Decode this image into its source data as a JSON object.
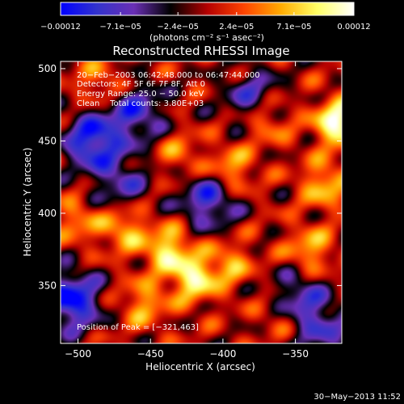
{
  "chart_data": {
    "type": "heatmap",
    "title": "Reconstructed RHESSI Image",
    "xlabel": "Heliocentric X (arcsec)",
    "ylabel": "Heliocentric Y (arcsec)",
    "xlim": [
      -512,
      -318
    ],
    "ylim": [
      310,
      505
    ],
    "x_ticks": [
      -500,
      -450,
      -400,
      -350
    ],
    "x_tick_labels": [
      "−500",
      "−450",
      "−400",
      "−350"
    ],
    "y_ticks": [
      350,
      400,
      450,
      500
    ],
    "y_tick_labels": [
      "350",
      "400",
      "450",
      "500"
    ],
    "colorbar": {
      "range": [
        -0.00012,
        0.00012
      ],
      "tick_values": [
        -0.00012,
        -7.1e-05,
        -2.4e-05,
        2.4e-05,
        7.1e-05,
        0.00012
      ],
      "tick_labels": [
        "−0.00012",
        "−7.1e−05",
        "−2.4e−05",
        "2.4e−05",
        "7.1e−05",
        "0.00012"
      ],
      "units_label": "(photons cm⁻² s⁻¹ asec⁻²)"
    },
    "annotations": [
      "20−Feb−2003 06:42:48.000 to 06:47:44.000",
      "Detectors: 4F 5F 6F 7F 8F, Att 0",
      "Energy Range: 25.0 − 50.0 keV",
      "Clean    Total counts: 3.80E+03"
    ],
    "peak_label": "Position of Peak = [−321,463]",
    "peak_position": [
      -321,
      463
    ],
    "colormap": [
      "#0000ff",
      "#3333cc",
      "#6a2fb5",
      "#000000",
      "#b40000",
      "#ff4400",
      "#ffaa00",
      "#ffff66",
      "#ffffff"
    ],
    "features": [
      {
        "type": "peak",
        "x": -321,
        "y": 463,
        "value": 0.00012
      },
      {
        "type": "peak",
        "x": -420,
        "y": 355,
        "value": 9.5e-05
      },
      {
        "type": "peak",
        "x": -438,
        "y": 375,
        "value": 9e-05
      },
      {
        "type": "peak",
        "x": -468,
        "y": 390,
        "value": 7e-05
      },
      {
        "type": "peak",
        "x": -455,
        "y": 338,
        "value": 6e-05
      },
      {
        "type": "peak",
        "x": -395,
        "y": 430,
        "value": 7e-05
      },
      {
        "type": "peak",
        "x": -370,
        "y": 465,
        "value": 6e-05
      },
      {
        "type": "peak",
        "x": -340,
        "y": 375,
        "value": 6.5e-05
      },
      {
        "type": "peak",
        "x": -395,
        "y": 365,
        "value": 5.5e-05
      },
      {
        "type": "peak",
        "x": -485,
        "y": 490,
        "value": 5e-05
      },
      {
        "type": "peak",
        "x": -330,
        "y": 420,
        "value": 7e-05
      },
      {
        "type": "peak",
        "x": -500,
        "y": 395,
        "value": 5e-05
      },
      {
        "type": "peak",
        "x": -430,
        "y": 440,
        "value": 4.5e-05
      },
      {
        "type": "peak",
        "x": -360,
        "y": 330,
        "value": 5e-05
      },
      {
        "type": "trough",
        "x": -490,
        "y": 450,
        "value": -0.00011
      },
      {
        "type": "trough",
        "x": -505,
        "y": 340,
        "value": -0.00012
      },
      {
        "type": "trough",
        "x": -410,
        "y": 410,
        "value": -9e-05
      },
      {
        "type": "trough",
        "x": -350,
        "y": 340,
        "value": -8e-05
      },
      {
        "type": "trough",
        "x": -460,
        "y": 470,
        "value": -8e-05
      },
      {
        "type": "trough",
        "x": -380,
        "y": 480,
        "value": -7e-05
      },
      {
        "type": "trough",
        "x": -470,
        "y": 420,
        "value": -6e-05
      },
      {
        "type": "trough",
        "x": -330,
        "y": 320,
        "value": -6e-05
      }
    ]
  },
  "footer": {
    "date": "30−May−2013 11:52"
  }
}
